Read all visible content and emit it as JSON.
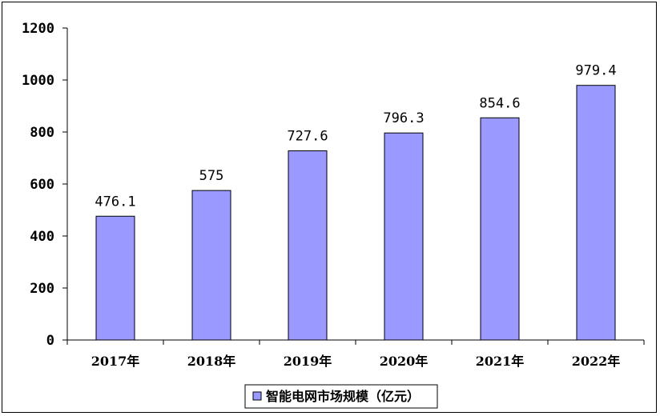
{
  "chart_data": {
    "type": "bar",
    "categories": [
      "2017年",
      "2018年",
      "2019年",
      "2020年",
      "2021年",
      "2022年"
    ],
    "series": [
      {
        "name": "智能电网市场规模（亿元）",
        "values": [
          476.1,
          575,
          727.6,
          796.3,
          854.6,
          979.4
        ]
      }
    ],
    "data_labels": [
      "476.1",
      "575",
      "727.6",
      "796.3",
      "854.6",
      "979.4"
    ],
    "y_ticks": [
      0,
      200,
      400,
      600,
      800,
      1000,
      1200
    ],
    "ylim": [
      0,
      1200
    ],
    "grid": false,
    "legend_position": "bottom",
    "bar_color": "#9999ff",
    "bar_edge_color": "#000000"
  }
}
